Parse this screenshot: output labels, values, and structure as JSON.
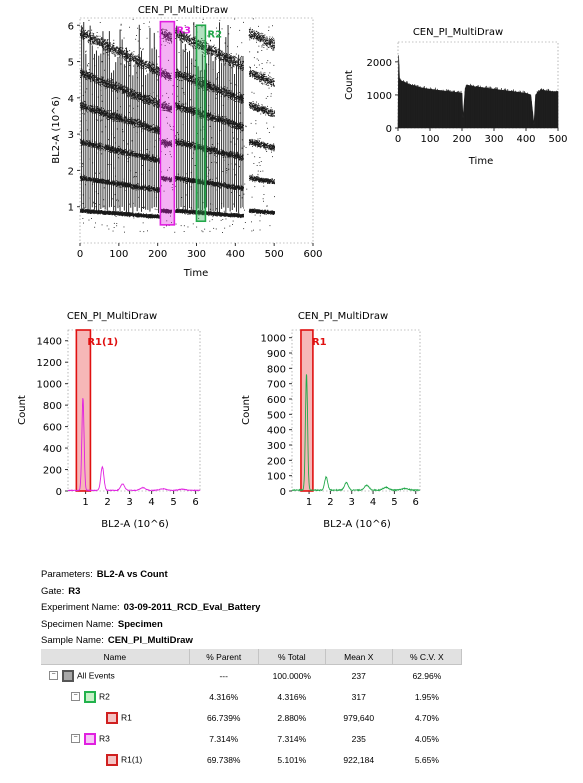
{
  "colors": {
    "magenta": "#e020e0",
    "green": "#22a84a",
    "red": "#e01010",
    "dots": "#1a1a1a",
    "histogram_fill": "#1e1e1e"
  },
  "chart_data": [
    {
      "type": "scatter",
      "id": "dotplot",
      "title": "CEN_PI_MultiDraw",
      "xlabel": "Time",
      "ylabel": "BL2-A (10^6)",
      "xlim": [
        0,
        600
      ],
      "ylim": [
        0,
        6.2
      ],
      "xticks": [
        "0",
        "100",
        "200",
        "300",
        "400",
        "500",
        "600"
      ],
      "yticks": [
        "1",
        "2",
        "3",
        "4",
        "5",
        "6"
      ],
      "bands_y": [
        0.9,
        1.8,
        2.8,
        3.8,
        4.7,
        5.8
      ],
      "segments": [
        {
          "x": [
            0,
            205
          ],
          "bursts": true
        },
        {
          "x": [
            208,
            235
          ],
          "bursts": false
        },
        {
          "x": [
            245,
            420
          ],
          "bursts": true
        },
        {
          "x": [
            435,
            500
          ],
          "bursts": false
        }
      ],
      "gates": [
        {
          "name": "R3",
          "label": "R3",
          "color": "magenta",
          "x": [
            207,
            243
          ],
          "y": [
            0.5,
            6.1
          ]
        },
        {
          "name": "R2",
          "label": "R2",
          "color": "green",
          "x": [
            300,
            323
          ],
          "y": [
            0.6,
            6.0
          ]
        }
      ]
    },
    {
      "type": "area",
      "id": "time-histogram",
      "title": "CEN_PI_MultiDraw",
      "xlabel": "Time",
      "ylabel": "Count",
      "xlim": [
        0,
        500
      ],
      "ylim": [
        0,
        2600
      ],
      "xticks": [
        "0",
        "100",
        "200",
        "300",
        "400",
        "500"
      ],
      "yticks": [
        "0",
        "1000",
        "2000"
      ],
      "x": [
        0,
        2,
        5,
        40,
        80,
        120,
        160,
        200,
        203,
        210,
        215,
        240,
        280,
        320,
        360,
        400,
        415,
        425,
        430,
        445,
        480,
        500
      ],
      "y": [
        0,
        2200,
        1450,
        1300,
        1200,
        1150,
        1100,
        1050,
        300,
        1200,
        1300,
        1250,
        1200,
        1150,
        1100,
        1050,
        1000,
        100,
        1000,
        1150,
        1100,
        1100
      ]
    },
    {
      "type": "line",
      "id": "hist-r3",
      "title": "CEN_PI_MultiDraw",
      "xlabel": "BL2-A (10^6)",
      "ylabel": "Count",
      "xlim": [
        0.2,
        6.2
      ],
      "ylim": [
        0,
        1500
      ],
      "xticks": [
        "1",
        "2",
        "3",
        "4",
        "5",
        "6"
      ],
      "yticks": [
        "0",
        "200",
        "400",
        "600",
        "800",
        "1000",
        "1200",
        "1400"
      ],
      "color": "magenta",
      "peaks": [
        {
          "x": 0.88,
          "y": 860,
          "w": 0.05
        },
        {
          "x": 1.76,
          "y": 220,
          "w": 0.07
        },
        {
          "x": 2.68,
          "y": 60,
          "w": 0.09
        },
        {
          "x": 3.6,
          "y": 25,
          "w": 0.12
        },
        {
          "x": 4.5,
          "y": 15,
          "w": 0.14
        },
        {
          "x": 5.4,
          "y": 10,
          "w": 0.16
        }
      ],
      "region": {
        "label": "R1(1)",
        "x": [
          0.58,
          1.22
        ]
      }
    },
    {
      "type": "line",
      "id": "hist-r2",
      "title": "CEN_PI_MultiDraw",
      "xlabel": "BL2-A (10^6)",
      "ylabel": "Count",
      "xlim": [
        0.2,
        6.2
      ],
      "ylim": [
        0,
        1050
      ],
      "xticks": [
        "1",
        "2",
        "3",
        "4",
        "5",
        "6"
      ],
      "yticks": [
        "0",
        "100",
        "200",
        "300",
        "400",
        "500",
        "600",
        "700",
        "800",
        "900",
        "1000"
      ],
      "color": "green",
      "peaks": [
        {
          "x": 0.88,
          "y": 760,
          "w": 0.05
        },
        {
          "x": 1.8,
          "y": 85,
          "w": 0.07
        },
        {
          "x": 2.75,
          "y": 48,
          "w": 0.09
        },
        {
          "x": 3.7,
          "y": 30,
          "w": 0.11
        },
        {
          "x": 4.6,
          "y": 18,
          "w": 0.13
        },
        {
          "x": 5.5,
          "y": 10,
          "w": 0.15
        }
      ],
      "region": {
        "label": "R1",
        "x": [
          0.62,
          1.18
        ]
      }
    }
  ],
  "info": {
    "parameters_label": "Parameters:",
    "parameters": "BL2-A vs Count",
    "gate_label": "Gate:",
    "gate": "R3",
    "experiment_label": "Experiment Name:",
    "experiment": "03-09-2011_RCD_Eval_Battery",
    "specimen_label": "Specimen Name:",
    "specimen": "Specimen",
    "sample_label": "Sample Name:",
    "sample": "CEN_PI_MultiDraw"
  },
  "stats": {
    "headers": [
      "Name",
      "% Parent",
      "% Total",
      "Mean X",
      "% C.V. X"
    ],
    "rows": [
      {
        "name": "All Events",
        "parent": "---",
        "total": "100.000%",
        "mean": "237",
        "cv": "62.96%",
        "swatch": "gray",
        "expander": "⊟",
        "indent": 0
      },
      {
        "name": "R2",
        "parent": "4.316%",
        "total": "4.316%",
        "mean": "317",
        "cv": "1.95%",
        "swatch": "green",
        "expander": "⊟",
        "indent": 1
      },
      {
        "name": "R1",
        "parent": "66.739%",
        "total": "2.880%",
        "mean": "979,640",
        "cv": "4.70%",
        "swatch": "red",
        "expander": "",
        "indent": 2
      },
      {
        "name": "R3",
        "parent": "7.314%",
        "total": "7.314%",
        "mean": "235",
        "cv": "4.05%",
        "swatch": "mag",
        "expander": "⊟",
        "indent": 1
      },
      {
        "name": "R1(1)",
        "parent": "69.738%",
        "total": "5.101%",
        "mean": "922,184",
        "cv": "5.65%",
        "swatch": "red",
        "expander": "",
        "indent": 2
      }
    ]
  }
}
